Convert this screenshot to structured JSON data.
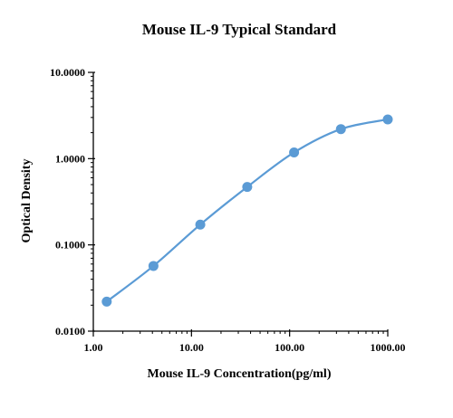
{
  "chart_data": {
    "type": "scatter",
    "title": "Mouse IL-9 Typical Standard",
    "xlabel": "Mouse IL-9 Concentration(pg/ml)",
    "ylabel": "Optical Density",
    "x_scale": "log",
    "y_scale": "log",
    "xlim": [
      1,
      1000
    ],
    "ylim": [
      0.01,
      10
    ],
    "x_ticks": [
      {
        "value": 1,
        "label": "1.00"
      },
      {
        "value": 10,
        "label": "10.00"
      },
      {
        "value": 100,
        "label": "100.00"
      },
      {
        "value": 1000,
        "label": "1000.00"
      }
    ],
    "y_ticks": [
      {
        "value": 0.01,
        "label": "0.0100"
      },
      {
        "value": 0.1,
        "label": "0.1000"
      },
      {
        "value": 1,
        "label": "1.0000"
      },
      {
        "value": 10,
        "label": "10.0000"
      }
    ],
    "grid": false,
    "legend": "none",
    "series": [
      {
        "color": "#5b9bd5",
        "points": [
          {
            "x": 1.37,
            "y": 0.022
          },
          {
            "x": 4.1,
            "y": 0.057
          },
          {
            "x": 12.3,
            "y": 0.172
          },
          {
            "x": 37,
            "y": 0.47
          },
          {
            "x": 111,
            "y": 1.18
          },
          {
            "x": 333,
            "y": 2.2
          },
          {
            "x": 1000,
            "y": 2.85
          }
        ]
      }
    ]
  }
}
